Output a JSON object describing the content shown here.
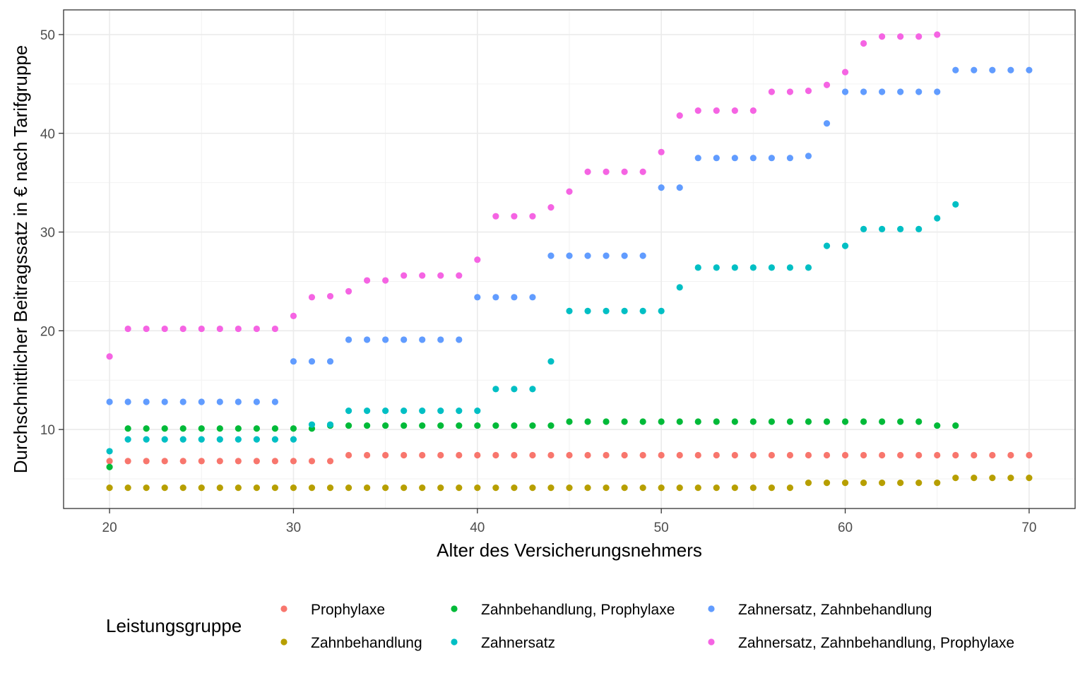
{
  "chart_data": {
    "type": "scatter",
    "title": "",
    "xlabel": "Alter des Versicherungsnehmers",
    "ylabel": "Durchschnittlicher Beitragssatz in € nach Tarifgruppe",
    "xlim": [
      17.5,
      72.5
    ],
    "ylim": [
      2.0,
      52.5
    ],
    "x_ticks": [
      20,
      30,
      40,
      50,
      60,
      70
    ],
    "y_ticks": [
      10,
      20,
      30,
      40,
      50
    ],
    "grid": true,
    "legend": {
      "title": "Leistungsgruppe",
      "position": "bottom"
    },
    "series": [
      {
        "name": "Prophylaxe",
        "color": "#F8766D",
        "points": [
          [
            20,
            6.8
          ],
          [
            21,
            6.8
          ],
          [
            22,
            6.8
          ],
          [
            23,
            6.8
          ],
          [
            24,
            6.8
          ],
          [
            25,
            6.8
          ],
          [
            26,
            6.8
          ],
          [
            27,
            6.8
          ],
          [
            28,
            6.8
          ],
          [
            29,
            6.8
          ],
          [
            30,
            6.8
          ],
          [
            31,
            6.8
          ],
          [
            32,
            6.8
          ],
          [
            33,
            7.4
          ],
          [
            34,
            7.4
          ],
          [
            35,
            7.4
          ],
          [
            36,
            7.4
          ],
          [
            37,
            7.4
          ],
          [
            38,
            7.4
          ],
          [
            39,
            7.4
          ],
          [
            40,
            7.4
          ],
          [
            41,
            7.4
          ],
          [
            42,
            7.4
          ],
          [
            43,
            7.4
          ],
          [
            44,
            7.4
          ],
          [
            45,
            7.4
          ],
          [
            46,
            7.4
          ],
          [
            47,
            7.4
          ],
          [
            48,
            7.4
          ],
          [
            49,
            7.4
          ],
          [
            50,
            7.4
          ],
          [
            51,
            7.4
          ],
          [
            52,
            7.4
          ],
          [
            53,
            7.4
          ],
          [
            54,
            7.4
          ],
          [
            55,
            7.4
          ],
          [
            56,
            7.4
          ],
          [
            57,
            7.4
          ],
          [
            58,
            7.4
          ],
          [
            59,
            7.4
          ],
          [
            60,
            7.4
          ],
          [
            61,
            7.4
          ],
          [
            62,
            7.4
          ],
          [
            63,
            7.4
          ],
          [
            64,
            7.4
          ],
          [
            65,
            7.4
          ],
          [
            66,
            7.4
          ],
          [
            67,
            7.4
          ],
          [
            68,
            7.4
          ],
          [
            69,
            7.4
          ],
          [
            70,
            7.4
          ]
        ]
      },
      {
        "name": "Zahnbehandlung",
        "color": "#B79F00",
        "points": [
          [
            20,
            4.1
          ],
          [
            21,
            4.1
          ],
          [
            22,
            4.1
          ],
          [
            23,
            4.1
          ],
          [
            24,
            4.1
          ],
          [
            25,
            4.1
          ],
          [
            26,
            4.1
          ],
          [
            27,
            4.1
          ],
          [
            28,
            4.1
          ],
          [
            29,
            4.1
          ],
          [
            30,
            4.1
          ],
          [
            31,
            4.1
          ],
          [
            32,
            4.1
          ],
          [
            33,
            4.1
          ],
          [
            34,
            4.1
          ],
          [
            35,
            4.1
          ],
          [
            36,
            4.1
          ],
          [
            37,
            4.1
          ],
          [
            38,
            4.1
          ],
          [
            39,
            4.1
          ],
          [
            40,
            4.1
          ],
          [
            41,
            4.1
          ],
          [
            42,
            4.1
          ],
          [
            43,
            4.1
          ],
          [
            44,
            4.1
          ],
          [
            45,
            4.1
          ],
          [
            46,
            4.1
          ],
          [
            47,
            4.1
          ],
          [
            48,
            4.1
          ],
          [
            49,
            4.1
          ],
          [
            50,
            4.1
          ],
          [
            51,
            4.1
          ],
          [
            52,
            4.1
          ],
          [
            53,
            4.1
          ],
          [
            54,
            4.1
          ],
          [
            55,
            4.1
          ],
          [
            56,
            4.1
          ],
          [
            57,
            4.1
          ],
          [
            58,
            4.6
          ],
          [
            59,
            4.6
          ],
          [
            60,
            4.6
          ],
          [
            61,
            4.6
          ],
          [
            62,
            4.6
          ],
          [
            63,
            4.6
          ],
          [
            64,
            4.6
          ],
          [
            65,
            4.6
          ],
          [
            66,
            5.1
          ],
          [
            67,
            5.1
          ],
          [
            68,
            5.1
          ],
          [
            69,
            5.1
          ],
          [
            70,
            5.1
          ]
        ]
      },
      {
        "name": "Zahnbehandlung, Prophylaxe",
        "color": "#00BA38",
        "points": [
          [
            20,
            6.2
          ],
          [
            21,
            10.1
          ],
          [
            22,
            10.1
          ],
          [
            23,
            10.1
          ],
          [
            24,
            10.1
          ],
          [
            25,
            10.1
          ],
          [
            26,
            10.1
          ],
          [
            27,
            10.1
          ],
          [
            28,
            10.1
          ],
          [
            29,
            10.1
          ],
          [
            30,
            10.1
          ],
          [
            31,
            10.1
          ],
          [
            32,
            10.4
          ],
          [
            33,
            10.4
          ],
          [
            34,
            10.4
          ],
          [
            35,
            10.4
          ],
          [
            36,
            10.4
          ],
          [
            37,
            10.4
          ],
          [
            38,
            10.4
          ],
          [
            39,
            10.4
          ],
          [
            40,
            10.4
          ],
          [
            41,
            10.4
          ],
          [
            42,
            10.4
          ],
          [
            43,
            10.4
          ],
          [
            44,
            10.4
          ],
          [
            45,
            10.8
          ],
          [
            46,
            10.8
          ],
          [
            47,
            10.8
          ],
          [
            48,
            10.8
          ],
          [
            49,
            10.8
          ],
          [
            50,
            10.8
          ],
          [
            51,
            10.8
          ],
          [
            52,
            10.8
          ],
          [
            53,
            10.8
          ],
          [
            54,
            10.8
          ],
          [
            55,
            10.8
          ],
          [
            56,
            10.8
          ],
          [
            57,
            10.8
          ],
          [
            58,
            10.8
          ],
          [
            59,
            10.8
          ],
          [
            60,
            10.8
          ],
          [
            61,
            10.8
          ],
          [
            62,
            10.8
          ],
          [
            63,
            10.8
          ],
          [
            64,
            10.8
          ],
          [
            65,
            10.4
          ],
          [
            66,
            10.4
          ]
        ]
      },
      {
        "name": "Zahnersatz",
        "color": "#00BFC4",
        "points": [
          [
            20,
            7.8
          ],
          [
            21,
            9.0
          ],
          [
            22,
            9.0
          ],
          [
            23,
            9.0
          ],
          [
            24,
            9.0
          ],
          [
            25,
            9.0
          ],
          [
            26,
            9.0
          ],
          [
            27,
            9.0
          ],
          [
            28,
            9.0
          ],
          [
            29,
            9.0
          ],
          [
            30,
            9.0
          ],
          [
            31,
            10.5
          ],
          [
            32,
            10.5
          ],
          [
            33,
            11.9
          ],
          [
            34,
            11.9
          ],
          [
            35,
            11.9
          ],
          [
            36,
            11.9
          ],
          [
            37,
            11.9
          ],
          [
            38,
            11.9
          ],
          [
            39,
            11.9
          ],
          [
            40,
            11.9
          ],
          [
            41,
            14.1
          ],
          [
            42,
            14.1
          ],
          [
            43,
            14.1
          ],
          [
            44,
            16.9
          ],
          [
            45,
            22.0
          ],
          [
            46,
            22.0
          ],
          [
            47,
            22.0
          ],
          [
            48,
            22.0
          ],
          [
            49,
            22.0
          ],
          [
            50,
            22.0
          ],
          [
            51,
            24.4
          ],
          [
            52,
            26.4
          ],
          [
            53,
            26.4
          ],
          [
            54,
            26.4
          ],
          [
            55,
            26.4
          ],
          [
            56,
            26.4
          ],
          [
            57,
            26.4
          ],
          [
            58,
            26.4
          ],
          [
            59,
            28.6
          ],
          [
            60,
            28.6
          ],
          [
            61,
            30.3
          ],
          [
            62,
            30.3
          ],
          [
            63,
            30.3
          ],
          [
            64,
            30.3
          ],
          [
            65,
            31.4
          ],
          [
            66,
            32.8
          ]
        ]
      },
      {
        "name": "Zahnersatz, Zahnbehandlung",
        "color": "#619CFF",
        "points": [
          [
            20,
            12.8
          ],
          [
            21,
            12.8
          ],
          [
            22,
            12.8
          ],
          [
            23,
            12.8
          ],
          [
            24,
            12.8
          ],
          [
            25,
            12.8
          ],
          [
            26,
            12.8
          ],
          [
            27,
            12.8
          ],
          [
            28,
            12.8
          ],
          [
            29,
            12.8
          ],
          [
            30,
            16.9
          ],
          [
            31,
            16.9
          ],
          [
            32,
            16.9
          ],
          [
            33,
            19.1
          ],
          [
            34,
            19.1
          ],
          [
            35,
            19.1
          ],
          [
            36,
            19.1
          ],
          [
            37,
            19.1
          ],
          [
            38,
            19.1
          ],
          [
            39,
            19.1
          ],
          [
            40,
            23.4
          ],
          [
            41,
            23.4
          ],
          [
            42,
            23.4
          ],
          [
            43,
            23.4
          ],
          [
            44,
            27.6
          ],
          [
            45,
            27.6
          ],
          [
            46,
            27.6
          ],
          [
            47,
            27.6
          ],
          [
            48,
            27.6
          ],
          [
            49,
            27.6
          ],
          [
            50,
            34.5
          ],
          [
            51,
            34.5
          ],
          [
            52,
            37.5
          ],
          [
            53,
            37.5
          ],
          [
            54,
            37.5
          ],
          [
            55,
            37.5
          ],
          [
            56,
            37.5
          ],
          [
            57,
            37.5
          ],
          [
            58,
            37.7
          ],
          [
            59,
            41.0
          ],
          [
            60,
            44.2
          ],
          [
            61,
            44.2
          ],
          [
            62,
            44.2
          ],
          [
            63,
            44.2
          ],
          [
            64,
            44.2
          ],
          [
            65,
            44.2
          ],
          [
            66,
            46.4
          ],
          [
            67,
            46.4
          ],
          [
            68,
            46.4
          ],
          [
            69,
            46.4
          ],
          [
            70,
            46.4
          ]
        ]
      },
      {
        "name": "Zahnersatz, Zahnbehandlung, Prophylaxe",
        "color": "#F564E3",
        "points": [
          [
            20,
            17.4
          ],
          [
            21,
            20.2
          ],
          [
            22,
            20.2
          ],
          [
            23,
            20.2
          ],
          [
            24,
            20.2
          ],
          [
            25,
            20.2
          ],
          [
            26,
            20.2
          ],
          [
            27,
            20.2
          ],
          [
            28,
            20.2
          ],
          [
            29,
            20.2
          ],
          [
            30,
            21.5
          ],
          [
            31,
            23.4
          ],
          [
            32,
            23.5
          ],
          [
            33,
            24.0
          ],
          [
            34,
            25.1
          ],
          [
            35,
            25.1
          ],
          [
            36,
            25.6
          ],
          [
            37,
            25.6
          ],
          [
            38,
            25.6
          ],
          [
            39,
            25.6
          ],
          [
            40,
            27.2
          ],
          [
            41,
            31.6
          ],
          [
            42,
            31.6
          ],
          [
            43,
            31.6
          ],
          [
            44,
            32.5
          ],
          [
            45,
            34.1
          ],
          [
            46,
            36.1
          ],
          [
            47,
            36.1
          ],
          [
            48,
            36.1
          ],
          [
            49,
            36.1
          ],
          [
            50,
            38.1
          ],
          [
            51,
            41.8
          ],
          [
            52,
            42.3
          ],
          [
            53,
            42.3
          ],
          [
            54,
            42.3
          ],
          [
            55,
            42.3
          ],
          [
            56,
            44.2
          ],
          [
            57,
            44.2
          ],
          [
            58,
            44.3
          ],
          [
            59,
            44.9
          ],
          [
            60,
            46.2
          ],
          [
            61,
            49.1
          ],
          [
            62,
            49.8
          ],
          [
            63,
            49.8
          ],
          [
            64,
            49.8
          ],
          [
            65,
            50.0
          ]
        ]
      }
    ]
  }
}
